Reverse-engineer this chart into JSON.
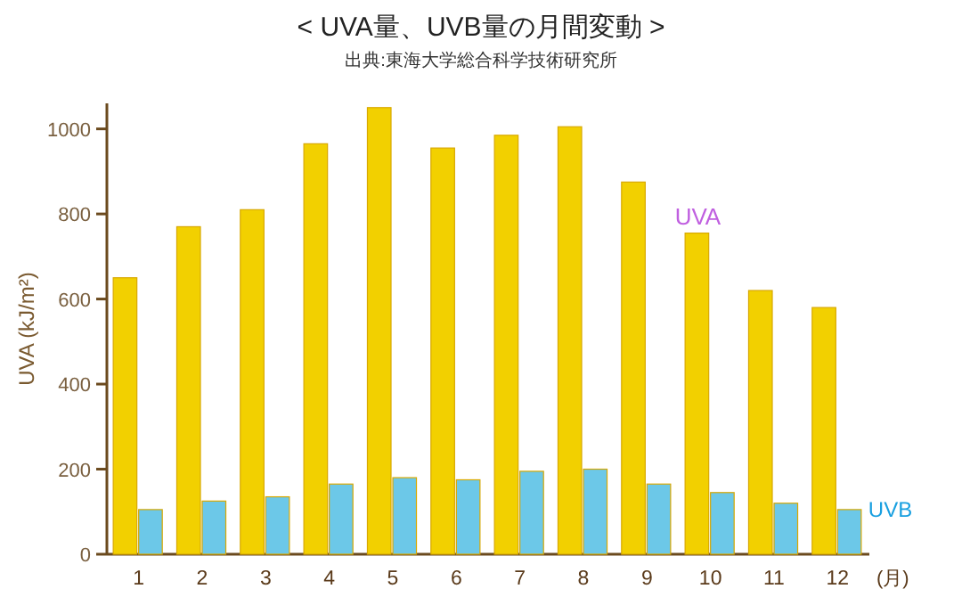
{
  "chart_data": {
    "type": "bar",
    "title": "< UVA量、UVB量の月間変動 >",
    "subtitle": "出典:東海大学総合科学技術研究所",
    "ylabel": "UVA (kJ/m²)",
    "xlabel": "(月)",
    "categories": [
      "1",
      "2",
      "3",
      "4",
      "5",
      "6",
      "7",
      "8",
      "9",
      "10",
      "11",
      "12"
    ],
    "series": [
      {
        "name": "UVA",
        "color": "#f2d000",
        "values": [
          650,
          770,
          810,
          965,
          1050,
          955,
          985,
          1005,
          875,
          755,
          620,
          580
        ]
      },
      {
        "name": "UVB",
        "color": "#6cc8e8",
        "values": [
          105,
          125,
          135,
          165,
          180,
          175,
          195,
          200,
          165,
          145,
          120,
          105
        ]
      }
    ],
    "ylim": [
      0,
      1060
    ],
    "yticks": [
      0,
      200,
      400,
      600,
      800,
      1000
    ],
    "grid": false,
    "legend": false
  }
}
